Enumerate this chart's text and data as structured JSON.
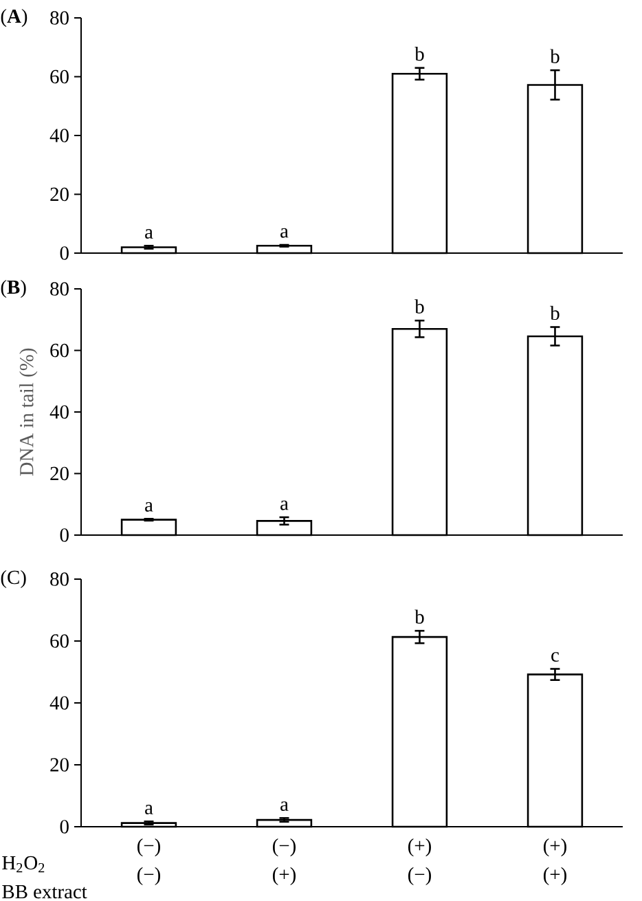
{
  "chart_data": [
    {
      "type": "bar",
      "title": "(**A**)",
      "categories": [
        null,
        null,
        null,
        null
      ],
      "values": [
        2,
        2.5,
        61,
        57.2
      ],
      "errors": [
        0.5,
        0.3,
        2,
        5
      ],
      "value_labels": [
        "a",
        "a",
        "b",
        "b"
      ],
      "color": "#ffffff",
      "ylim": [
        0,
        80
      ],
      "yticks": [
        0,
        20,
        40,
        60,
        80
      ]
    },
    {
      "type": "bar",
      "title": "(**B**)",
      "ylabel": "DNA in tail (%)",
      "categories": [
        null,
        null,
        null,
        null
      ],
      "values": [
        5,
        4.6,
        67,
        64.6
      ],
      "errors": [
        0.3,
        1.2,
        2.7,
        3
      ],
      "value_labels": [
        "a",
        "a",
        "b",
        "b"
      ],
      "color": "#ffffff",
      "ylim": [
        0,
        80
      ],
      "yticks": [
        0,
        20,
        40,
        60,
        80
      ]
    },
    {
      "type": "bar",
      "title": "(C)",
      "categories": [
        "(−) (−)",
        "(−) (+)",
        "(+) (−)",
        "(+) (+)"
      ],
      "values": [
        1.2,
        2.2,
        61.3,
        49.2
      ],
      "errors": [
        0.5,
        0.6,
        2,
        1.8
      ],
      "value_labels": [
        "a",
        "a",
        "b",
        "c"
      ],
      "color": "#ffffff",
      "ylim": [
        0,
        80
      ],
      "yticks": [
        0,
        20,
        40,
        60,
        80
      ],
      "annotations": [
        "H$_{2}$O$_{2}$",
        "BB extract"
      ]
    }
  ]
}
